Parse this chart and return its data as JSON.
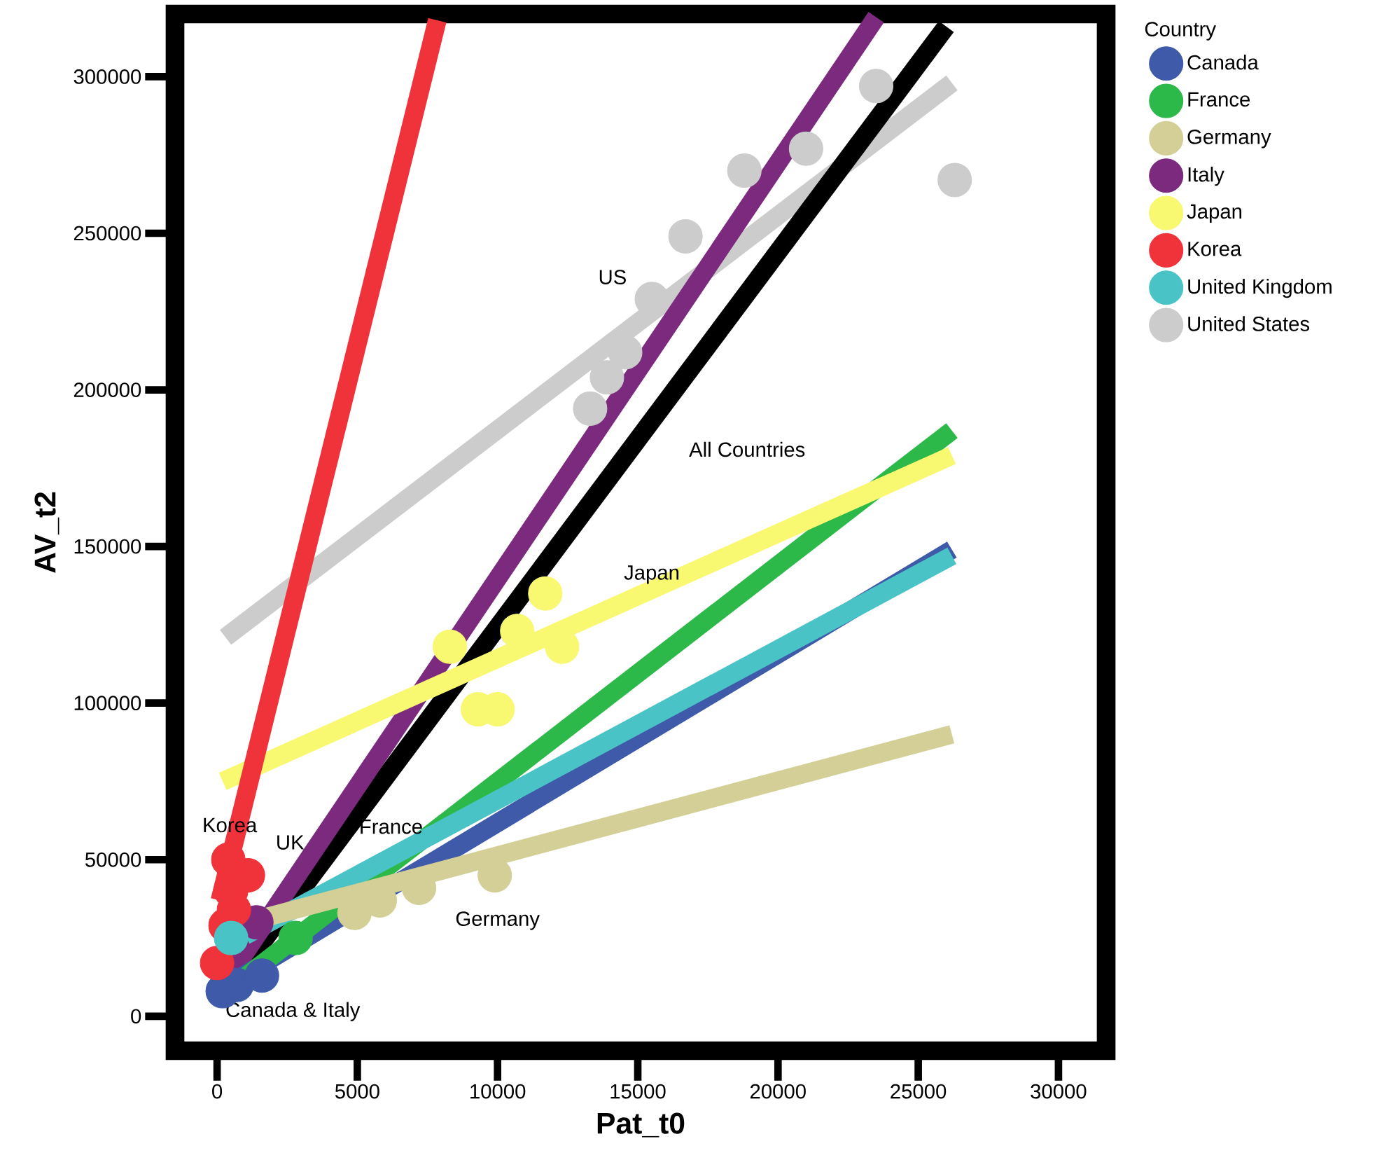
{
  "chart_data": {
    "type": "scatter",
    "xlabel": "Pat_t0",
    "ylabel": "AV_t2",
    "legend_title": "Country",
    "legend": "right",
    "grid": false,
    "xlim": [
      -1500,
      31700
    ],
    "ylim": [
      -11000,
      320000
    ],
    "xticks": [
      0,
      5000,
      10000,
      15000,
      20000,
      25000,
      30000
    ],
    "yticks": [
      0,
      50000,
      100000,
      150000,
      200000,
      250000,
      300000
    ],
    "series": [
      {
        "name": "Canada",
        "color": "#3f5aa8",
        "x": [
          200,
          700,
          1600
        ],
        "values": [
          8000,
          10000,
          13000
        ]
      },
      {
        "name": "France",
        "color": "#2db84a",
        "x": [
          2800
        ],
        "values": [
          25000
        ]
      },
      {
        "name": "Germany",
        "color": "#d3cf97",
        "x": [
          4900,
          5800,
          7200,
          9900
        ],
        "values": [
          33000,
          37000,
          41000,
          45000
        ]
      },
      {
        "name": "Italy",
        "color": "#7b2a7e",
        "x": [
          1400
        ],
        "values": [
          30000
        ]
      },
      {
        "name": "Japan",
        "color": "#f8f871",
        "x": [
          8300,
          9300,
          10000,
          10700,
          11700,
          12300
        ],
        "values": [
          118000,
          98000,
          98000,
          123000,
          135000,
          118000
        ]
      },
      {
        "name": "Korea",
        "color": "#f0323a",
        "x": [
          0,
          200,
          300,
          600,
          500,
          1100,
          400
        ],
        "values": [
          17000,
          null,
          29000,
          34000,
          40000,
          45000,
          50000
        ]
      },
      {
        "name": "United Kingdom",
        "color": "#4ac3c6",
        "x": [
          500
        ],
        "values": [
          25000
        ]
      },
      {
        "name": "United States",
        "color": "#cccccc",
        "x": [
          13300,
          13900,
          14550,
          15500,
          16700,
          18800,
          21000,
          23500,
          26300
        ],
        "values": [
          194000,
          204000,
          212000,
          229000,
          249000,
          270000,
          277000,
          297000,
          267000
        ]
      },
      {
        "type": "line",
        "color": "#cccccc",
        "x": [
          300,
          26200
        ],
        "values": [
          121000,
          298000
        ]
      },
      {
        "type": "line",
        "color": "#000000",
        "x": [
          300,
          26000
        ],
        "values": [
          8000,
          316000
        ]
      },
      {
        "type": "line",
        "color": "#7b2a7e",
        "x": [
          300,
          23500
        ],
        "values": [
          11000,
          319000
        ]
      },
      {
        "type": "line",
        "color": "#3f5aa8",
        "x": [
          200,
          26200
        ],
        "values": [
          9000,
          149000
        ]
      },
      {
        "type": "line",
        "color": "#2db84a",
        "x": [
          200,
          26200
        ],
        "values": [
          7000,
          187000
        ]
      },
      {
        "type": "line",
        "color": "#4ac3c6",
        "x": [
          1000,
          26200
        ],
        "values": [
          25800,
          147000
        ]
      },
      {
        "type": "line",
        "color": "#d3cf97",
        "x": [
          1500,
          26200
        ],
        "values": [
          31000,
          90000
        ]
      },
      {
        "type": "line",
        "color": "#f8f871",
        "x": [
          200,
          26200
        ],
        "values": [
          75000,
          179000
        ]
      },
      {
        "type": "line",
        "color": "#f0323a",
        "x": [
          100,
          7850
        ],
        "values": [
          37000,
          318000
        ]
      }
    ],
    "annotations": [
      "Korea",
      "UK",
      "France",
      "Germany",
      "Canada & Italy",
      "US",
      "All Countries",
      "Japan"
    ]
  }
}
